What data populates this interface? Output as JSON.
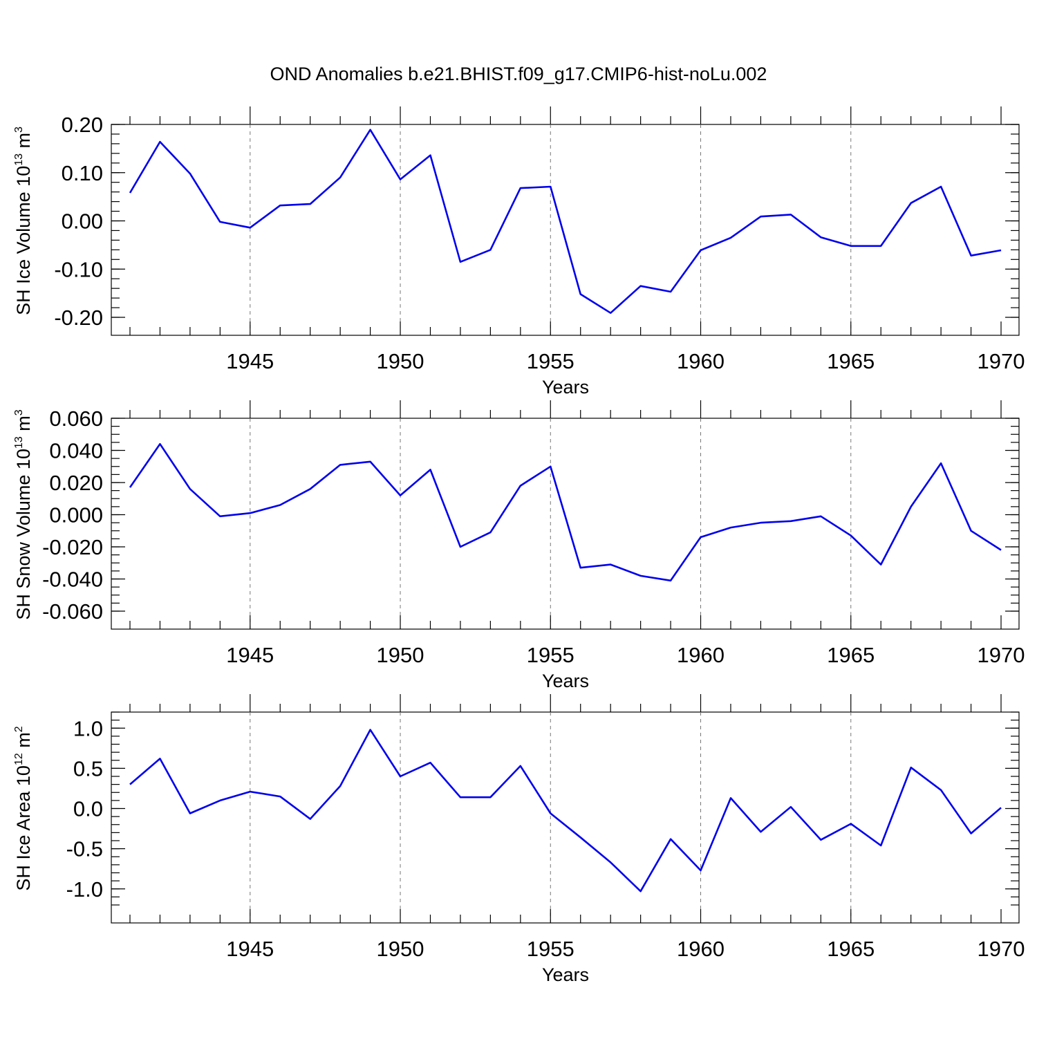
{
  "title": "OND Anomalies b.e21.BHIST.f09_g17.CMIP6-hist-noLu.002",
  "colors": {
    "line": "#0000ee",
    "grid": "#777777",
    "frame": "#000000"
  },
  "chart_data": [
    {
      "type": "line",
      "xlabel": "Years",
      "ylabel": {
        "base": "SH Ice Volume 10",
        "exp": "13",
        "unit": " m",
        "unit_exp": "3"
      },
      "xlim": [
        1941,
        1970
      ],
      "ylim": [
        -0.2,
        0.2
      ],
      "yticks": [
        -0.2,
        -0.1,
        0.0,
        0.1,
        0.2
      ],
      "ytick_labels": [
        "-0.20",
        "-0.10",
        "0.00",
        "0.10",
        "0.20"
      ],
      "yminor_step": 0.02,
      "xticks": [
        1945,
        1950,
        1955,
        1960,
        1965,
        1970
      ],
      "xtick_labels": [
        "1945",
        "1950",
        "1955",
        "1960",
        "1965",
        "1970"
      ],
      "grid_x": [
        1945,
        1950,
        1955,
        1960,
        1965
      ],
      "x": [
        1941,
        1942,
        1943,
        1944,
        1945,
        1946,
        1947,
        1948,
        1949,
        1950,
        1951,
        1952,
        1953,
        1954,
        1955,
        1956,
        1957,
        1958,
        1959,
        1960,
        1961,
        1962,
        1963,
        1964,
        1965,
        1966,
        1967,
        1968,
        1969,
        1970
      ],
      "values": [
        0.058,
        0.164,
        0.098,
        -0.002,
        -0.014,
        0.032,
        0.035,
        0.09,
        0.189,
        0.086,
        0.136,
        -0.085,
        -0.06,
        0.068,
        0.071,
        -0.152,
        -0.191,
        -0.135,
        -0.147,
        -0.061,
        -0.035,
        0.009,
        0.013,
        -0.034,
        -0.052,
        -0.052,
        0.037,
        0.071,
        -0.072,
        -0.061
      ]
    },
    {
      "type": "line",
      "xlabel": "Years",
      "ylabel": {
        "base": "SH Snow Volume 10",
        "exp": "13",
        "unit": " m",
        "unit_exp": "3"
      },
      "xlim": [
        1941,
        1970
      ],
      "ylim": [
        -0.06,
        0.06
      ],
      "yticks": [
        -0.06,
        -0.04,
        -0.02,
        0.0,
        0.02,
        0.04,
        0.06
      ],
      "ytick_labels": [
        "-0.060",
        "-0.040",
        "-0.020",
        "0.000",
        "0.020",
        "0.040",
        "0.060"
      ],
      "yminor_step": 0.005,
      "xticks": [
        1945,
        1950,
        1955,
        1960,
        1965,
        1970
      ],
      "xtick_labels": [
        "1945",
        "1950",
        "1955",
        "1960",
        "1965",
        "1970"
      ],
      "grid_x": [
        1945,
        1950,
        1955,
        1960,
        1965
      ],
      "x": [
        1941,
        1942,
        1943,
        1944,
        1945,
        1946,
        1947,
        1948,
        1949,
        1950,
        1951,
        1952,
        1953,
        1954,
        1955,
        1956,
        1957,
        1958,
        1959,
        1960,
        1961,
        1962,
        1963,
        1964,
        1965,
        1966,
        1967,
        1968,
        1969,
        1970
      ],
      "values": [
        0.017,
        0.044,
        0.016,
        -0.001,
        0.001,
        0.006,
        0.016,
        0.031,
        0.033,
        0.012,
        0.028,
        -0.02,
        -0.011,
        0.018,
        0.03,
        -0.033,
        -0.031,
        -0.038,
        -0.041,
        -0.014,
        -0.008,
        -0.005,
        -0.004,
        -0.001,
        -0.013,
        -0.031,
        0.005,
        0.032,
        -0.01,
        -0.022
      ]
    },
    {
      "type": "line",
      "xlabel": "Years",
      "ylabel": {
        "base": "SH Ice Area 10",
        "exp": "12",
        "unit": " m",
        "unit_exp": "2"
      },
      "xlim": [
        1941,
        1970
      ],
      "ylim": [
        -1.2,
        1.2
      ],
      "yticks": [
        -1.0,
        -0.5,
        0.0,
        0.5,
        1.0
      ],
      "ytick_labels": [
        "-1.0",
        "-0.5",
        "0.0",
        "0.5",
        "1.0"
      ],
      "yminor_step": 0.1,
      "xticks": [
        1945,
        1950,
        1955,
        1960,
        1965,
        1970
      ],
      "xtick_labels": [
        "1945",
        "1950",
        "1955",
        "1960",
        "1965",
        "1970"
      ],
      "grid_x": [
        1945,
        1950,
        1955,
        1960,
        1965
      ],
      "x": [
        1941,
        1942,
        1943,
        1944,
        1945,
        1946,
        1947,
        1948,
        1949,
        1950,
        1951,
        1952,
        1953,
        1954,
        1955,
        1956,
        1957,
        1958,
        1959,
        1960,
        1961,
        1962,
        1963,
        1964,
        1965,
        1966,
        1967,
        1968,
        1969,
        1970
      ],
      "values": [
        0.3,
        0.62,
        -0.06,
        0.1,
        0.21,
        0.15,
        -0.13,
        0.28,
        0.98,
        0.4,
        0.57,
        0.14,
        0.14,
        0.53,
        -0.06,
        -0.36,
        -0.67,
        -1.03,
        -0.38,
        -0.77,
        0.13,
        -0.29,
        0.02,
        -0.39,
        -0.19,
        -0.46,
        0.51,
        0.23,
        -0.31,
        0.01
      ]
    }
  ]
}
